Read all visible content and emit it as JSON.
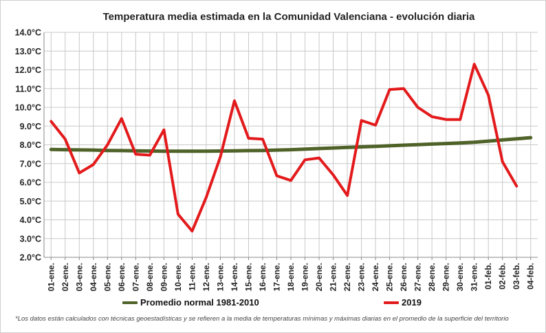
{
  "chart_data": {
    "type": "line",
    "title": "Temperatura media estimada en la Comunidad Valenciana - evolución diaria",
    "categories": [
      "01-ene.",
      "02-ene.",
      "03-ene.",
      "04-ene.",
      "05-ene.",
      "06-ene.",
      "07-ene.",
      "08-ene.",
      "09-ene.",
      "10-ene.",
      "11-ene.",
      "12-ene.",
      "13-ene.",
      "14-ene.",
      "15-ene.",
      "16-ene.",
      "17-ene.",
      "18-ene.",
      "19-ene.",
      "20-ene.",
      "21-ene.",
      "22-ene.",
      "23-ene.",
      "24-ene.",
      "25-ene.",
      "26-ene.",
      "27-ene.",
      "28-ene.",
      "29-ene.",
      "30-ene.",
      "31-ene.",
      "01-feb.",
      "02-feb.",
      "03-feb.",
      "04-feb."
    ],
    "y_tick_labels": [
      "2.0°C",
      "3.0°C",
      "4.0°C",
      "5.0°C",
      "6.0°C",
      "7.0°C",
      "8.0°C",
      "9.0°C",
      "10.0°C",
      "11.0°C",
      "12.0°C",
      "13.0°C",
      "14.0°C"
    ],
    "ylim": [
      2,
      14
    ],
    "y_step": 1,
    "series": [
      {
        "name": "Promedio normal 1981-2010",
        "color": "#4f6228",
        "values": [
          7.75,
          7.74,
          7.73,
          7.72,
          7.7,
          7.69,
          7.68,
          7.67,
          7.66,
          7.66,
          7.66,
          7.66,
          7.67,
          7.68,
          7.69,
          7.7,
          7.72,
          7.74,
          7.77,
          7.8,
          7.83,
          7.86,
          7.89,
          7.92,
          7.95,
          7.98,
          8.01,
          8.04,
          8.07,
          8.1,
          8.14,
          8.2,
          8.26,
          8.32,
          8.38
        ]
      },
      {
        "name": "2019",
        "color": "#e31a1c",
        "values": [
          9.25,
          8.3,
          6.5,
          6.95,
          8.0,
          9.4,
          7.5,
          7.45,
          8.8,
          4.3,
          3.4,
          5.2,
          7.35,
          10.35,
          8.35,
          8.3,
          6.35,
          6.1,
          7.2,
          7.3,
          6.4,
          5.3,
          9.3,
          9.05,
          10.95,
          11.0,
          10.0,
          9.5,
          9.35,
          9.35,
          12.3,
          10.65,
          7.1,
          5.8,
          null
        ]
      }
    ],
    "grid": true
  },
  "legend": {
    "normal_label": "Promedio normal 1981-2010",
    "year_label": "2019"
  },
  "footnote": "*Los datos están calculados con técnicas geoestadísticas y se refieren a la media de temperaturas mínimas y máximas diarias en el promedio de la superficie del territorio"
}
